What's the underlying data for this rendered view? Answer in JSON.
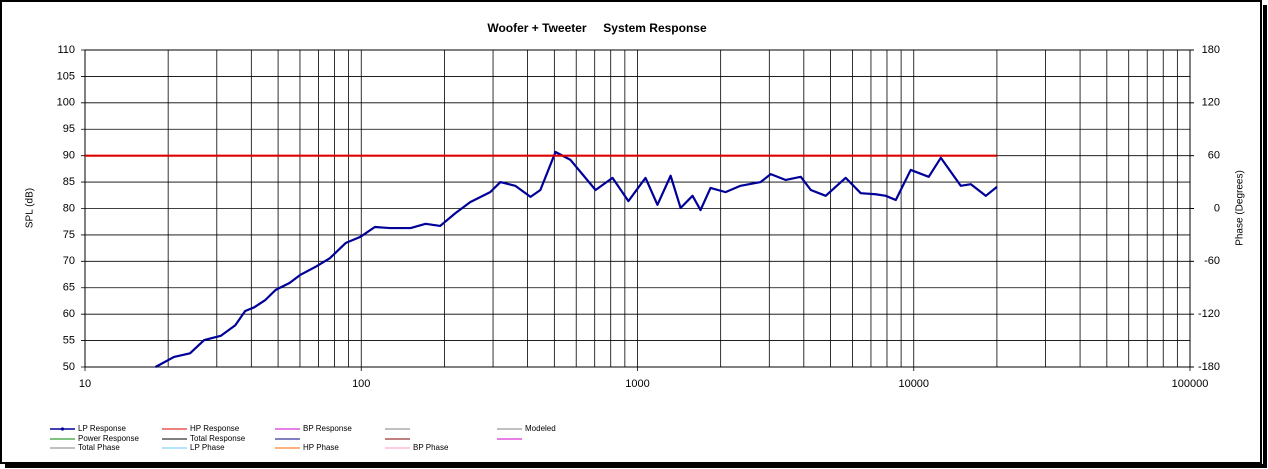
{
  "chart_data": {
    "type": "line",
    "title": "Woofer + Tweeter     System Response",
    "ylabel": "SPL (dB)",
    "y2label": "Phase (Degrees)",
    "xscale": "log",
    "grid": true,
    "xlim": [
      10,
      100000
    ],
    "xticks": [
      10,
      100,
      1000,
      10000,
      100000
    ],
    "ylim": [
      50,
      110
    ],
    "yticks": [
      50,
      55,
      60,
      65,
      70,
      75,
      80,
      85,
      90,
      95,
      100,
      105,
      110
    ],
    "y2lim": [
      -180,
      180
    ],
    "y2ticks": [
      -180,
      -120,
      -60,
      0,
      60,
      120,
      180
    ],
    "series": [
      {
        "name": "LP Response",
        "color": "#000099",
        "x": [
          18,
          21,
          24,
          27,
          31,
          35,
          38,
          41,
          45,
          49,
          55,
          60,
          68,
          77,
          88,
          99,
          112,
          127,
          151,
          171,
          193,
          219,
          248,
          293,
          319,
          361,
          410,
          445,
          505,
          572,
          705,
          812,
          927,
          1069,
          1181,
          1318,
          1432,
          1582,
          1691,
          1838,
          2083,
          2360,
          2790,
          3035,
          3440,
          3900,
          4240,
          4800,
          5670,
          6430,
          7280,
          7920,
          8610,
          9750,
          11330,
          12530,
          14790,
          16100,
          18240,
          20000
        ],
        "values": [
          50.0,
          51.9,
          52.6,
          55.1,
          55.9,
          57.9,
          60.6,
          61.3,
          62.7,
          64.6,
          65.9,
          67.4,
          68.9,
          70.6,
          73.5,
          74.6,
          76.5,
          76.3,
          76.3,
          77.1,
          76.7,
          79.1,
          81.2,
          83.1,
          85.0,
          84.3,
          82.2,
          83.5,
          90.7,
          89.2,
          83.5,
          85.8,
          81.4,
          85.8,
          80.7,
          86.2,
          80.1,
          82.4,
          79.7,
          83.9,
          83.1,
          84.3,
          85.0,
          86.5,
          85.4,
          86.0,
          83.5,
          82.4,
          85.8,
          82.9,
          82.7,
          82.4,
          81.6,
          87.3,
          86.0,
          89.6,
          84.3,
          84.6,
          82.4,
          84.1
        ]
      },
      {
        "name": "HP Response",
        "color": "#dd0000",
        "x": [
          10,
          20000
        ],
        "values": [
          90,
          90
        ]
      }
    ],
    "legend_entries": [
      {
        "name": "BP Response",
        "color": "#cc00cc"
      },
      {
        "name": "Modeled",
        "color": "#808080"
      },
      {
        "name": "Power Response",
        "color": "#008000"
      },
      {
        "name": "Total Response",
        "color": "#000000"
      },
      {
        "name": "Total Phase",
        "color": "#808080"
      },
      {
        "name": "LP Phase",
        "color": "#66ccff"
      },
      {
        "name": "HP Phase",
        "color": "#ff6600"
      },
      {
        "name": "BP Phase",
        "color": "#ff99cc"
      }
    ]
  }
}
